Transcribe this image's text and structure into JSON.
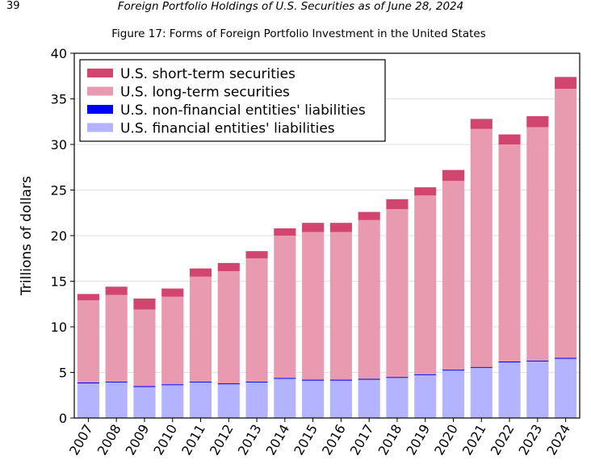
{
  "header": {
    "page_number": "39",
    "title": "Foreign Portfolio Holdings of U.S. Securities as of June 28, 2024"
  },
  "chart_data": {
    "type": "bar",
    "stacked": true,
    "title": "Figure 17: Forms of Foreign Portfolio Investment in the United States",
    "xlabel": "",
    "ylabel": "Trillions of dollars",
    "ylim": [
      0,
      40
    ],
    "yticks": [
      0,
      5,
      10,
      15,
      20,
      25,
      30,
      35,
      40
    ],
    "grid": true,
    "legend_position": "top-left",
    "categories": [
      "2007",
      "2008",
      "2009",
      "2010",
      "2011",
      "2012",
      "2013",
      "2014",
      "2015",
      "2016",
      "2017",
      "2018",
      "2019",
      "2020",
      "2021",
      "2022",
      "2023",
      "2024"
    ],
    "series": [
      {
        "name": "U.S. financial entities' liabilities",
        "color": "#b3b3ff",
        "values": [
          3.8,
          3.9,
          3.4,
          3.6,
          3.9,
          3.7,
          3.9,
          4.3,
          4.1,
          4.1,
          4.2,
          4.4,
          4.7,
          5.2,
          5.5,
          6.1,
          6.2,
          6.5
        ]
      },
      {
        "name": "U.S. non-financial entities' liabilities",
        "color": "#0000ff",
        "values": [
          0.1,
          0.1,
          0.1,
          0.1,
          0.1,
          0.1,
          0.1,
          0.1,
          0.1,
          0.1,
          0.1,
          0.1,
          0.1,
          0.1,
          0.1,
          0.1,
          0.1,
          0.1
        ]
      },
      {
        "name": "U.S. long-term securities",
        "color": "#e89bb0",
        "values": [
          9.0,
          9.5,
          8.4,
          9.6,
          11.5,
          12.3,
          13.5,
          15.6,
          16.2,
          16.2,
          17.4,
          18.4,
          19.6,
          20.7,
          26.1,
          23.8,
          25.6,
          29.5
        ]
      },
      {
        "name": "U.S. short-term securities",
        "color": "#d2456e",
        "values": [
          0.7,
          0.9,
          1.2,
          0.9,
          0.9,
          0.9,
          0.8,
          0.8,
          1.0,
          1.0,
          0.9,
          1.1,
          0.9,
          1.2,
          1.1,
          1.1,
          1.2,
          1.3
        ]
      }
    ],
    "legend_order": [
      3,
      2,
      1,
      0
    ]
  }
}
